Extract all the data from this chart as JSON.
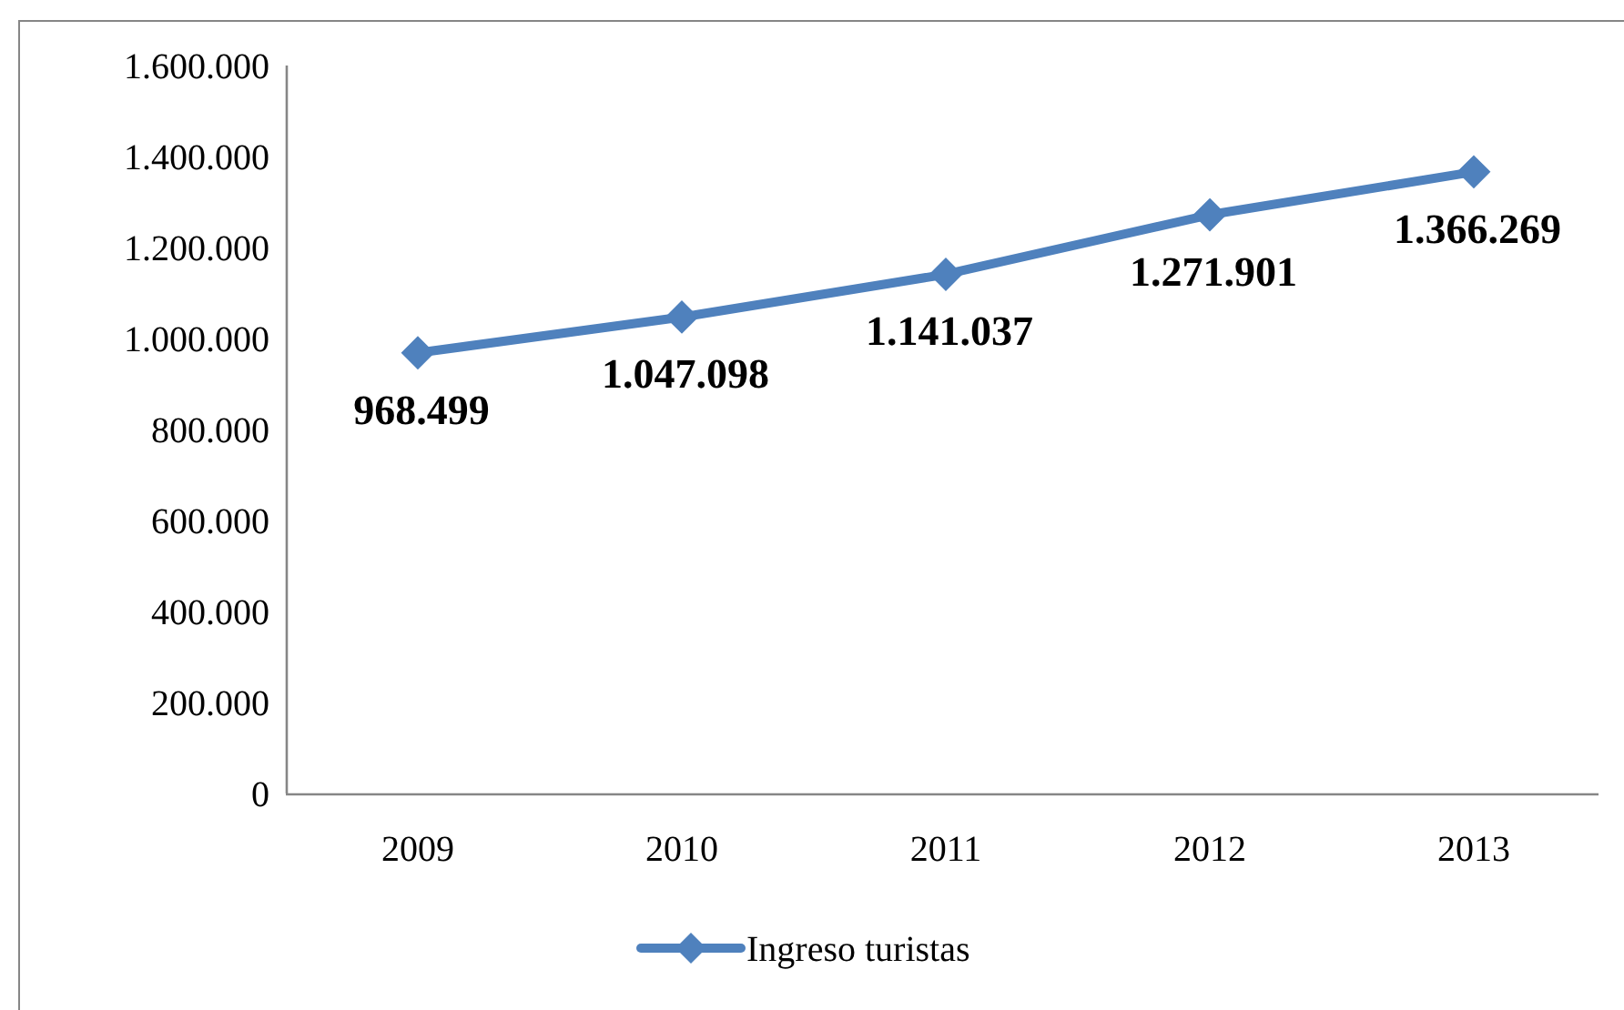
{
  "chart_data": {
    "type": "line",
    "categories": [
      "2009",
      "2010",
      "2011",
      "2012",
      "2013"
    ],
    "series": [
      {
        "name": "Ingreso turistas",
        "color": "#4f81bd",
        "values": [
          968499,
          1047098,
          1141037,
          1271901,
          1366269
        ],
        "value_labels": [
          "968.499",
          "1.047.098",
          "1.141.037",
          "1.271.901",
          "1.366.269"
        ]
      }
    ],
    "ylim": [
      0,
      1600000
    ],
    "yticks": [
      0,
      {
        "value": 200000,
        "label": "200.000"
      },
      {
        "value": 400000,
        "label": "400.000"
      },
      {
        "value": 600000,
        "label": "600.000"
      },
      {
        "value": 800000,
        "label": "800.000"
      },
      {
        "value": 1000000,
        "label": "1.000.000"
      },
      {
        "value": 1200000,
        "label": "1.200.000"
      },
      {
        "value": 1400000,
        "label": "1.400.000"
      },
      {
        "value": 1600000,
        "label": "1.600.000"
      }
    ],
    "marker": "diamond",
    "legend": "bottom"
  }
}
